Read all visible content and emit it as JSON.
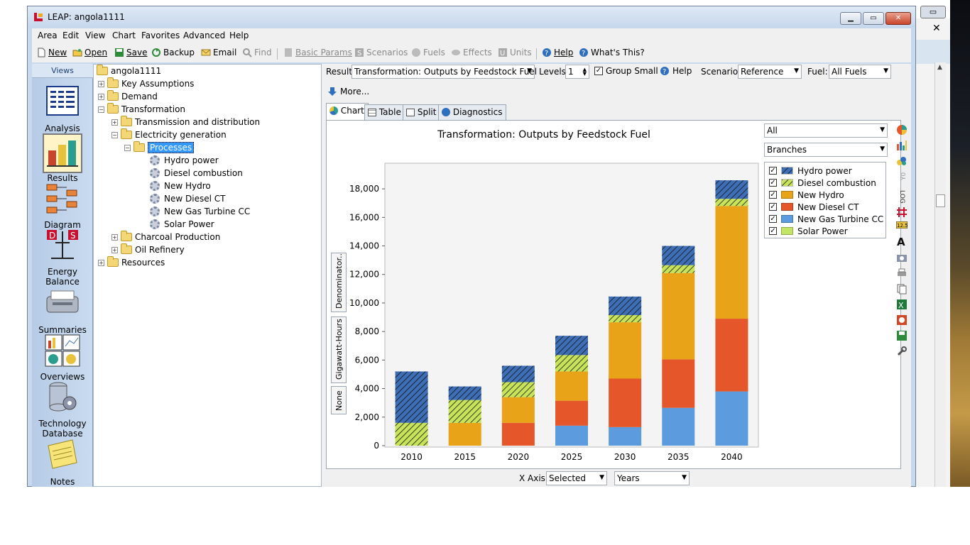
{
  "window": {
    "title": "LEAP: angola1111"
  },
  "menu": [
    "Area",
    "Edit",
    "View",
    "Chart",
    "Favorites",
    "Advanced",
    "Help"
  ],
  "toolbar": {
    "new": "New",
    "open": "Open",
    "save": "Save",
    "backup": "Backup",
    "email": "Email",
    "find": "Find",
    "basic_params": "Basic Params",
    "scenarios": "Scenarios",
    "fuels": "Fuels",
    "effects": "Effects",
    "units": "Units",
    "help": "Help",
    "whats_this": "What's This?"
  },
  "views": {
    "header": "Views",
    "items": [
      {
        "label": "Analysis",
        "icon": "analysis-icon"
      },
      {
        "label": "Results",
        "icon": "results-icon"
      },
      {
        "label": "Diagram",
        "icon": "diagram-icon"
      },
      {
        "label": "Energy Balance",
        "icon": "energy-balance-icon"
      },
      {
        "label": "Summaries",
        "icon": "summaries-icon"
      },
      {
        "label": "Overviews",
        "icon": "overviews-icon"
      },
      {
        "label": "Technology Database",
        "icon": "technology-database-icon"
      },
      {
        "label": "Notes",
        "icon": "notes-icon"
      }
    ]
  },
  "tree": {
    "root": "angola1111",
    "nodes": {
      "key_assumptions": "Key Assumptions",
      "demand": "Demand",
      "transformation": "Transformation",
      "transmission": "Transmission and distribution",
      "electricity": "Electricity generation",
      "processes": "Processes",
      "hydro": "Hydro power",
      "diesel": "Diesel combustion",
      "new_hydro": "New Hydro",
      "new_diesel": "New Diesel CT",
      "new_gas": "New Gas Turbine CC",
      "solar": "Solar Power",
      "charcoal": "Charcoal Production",
      "oil": "Oil Refinery",
      "resources": "Resources"
    }
  },
  "controls": {
    "result_label": "Result:",
    "result_value": "Transformation: Outputs by Feedstock Fuel",
    "levels_label": "Levels:",
    "levels_value": "1",
    "group_small": "Group Small",
    "help": "Help",
    "scenario_label": "Scenario:",
    "scenario_value": "Reference",
    "fuel_label": "Fuel:",
    "fuel_value": "All Fuels",
    "more": "More...",
    "tabs": [
      "Chart",
      "Table",
      "Split",
      "Diagnostics"
    ],
    "filter1": "All",
    "filter2": "Branches",
    "side_tabs": [
      "Denominator..",
      "Gigawatt-Hours",
      "None"
    ],
    "xaxis_label": "X Axis:",
    "xaxis_value": "Selected",
    "xaxis_unit": "Years"
  },
  "colors": {
    "hydro": "#3e6fb6",
    "diesel": "#c7e35a",
    "new_hydro": "#e8a318",
    "new_diesel": "#e5572a",
    "new_gas": "#5b9bde",
    "solar": "#c3e565"
  },
  "chart_data": {
    "type": "bar",
    "stacked": true,
    "title": "Transformation: Outputs by Feedstock Fuel",
    "ylabel": "Gigawatt-Hours",
    "categories": [
      "2010",
      "2015",
      "2020",
      "2025",
      "2030",
      "2035",
      "2040"
    ],
    "ylim": [
      0,
      19000
    ],
    "yticks": [
      "0",
      "2,000",
      "4,000",
      "6,000",
      "8,000",
      "10,000",
      "12,000",
      "14,000",
      "16,000",
      "18,000"
    ],
    "legend_position": "top-right",
    "series": [
      {
        "name": "Solar Power",
        "values": [
          0,
          0,
          0,
          0,
          0,
          0,
          0
        ],
        "color": "#c3e565",
        "hatch": false
      },
      {
        "name": "New Gas Turbine CC",
        "values": [
          0,
          0,
          0,
          1400,
          1300,
          2650,
          3800
        ],
        "color": "#5b9bde",
        "hatch": false
      },
      {
        "name": "New Diesel CT",
        "values": [
          0,
          0,
          1600,
          1750,
          3400,
          3400,
          5100
        ],
        "color": "#e5572a",
        "hatch": false
      },
      {
        "name": "New Hydro",
        "values": [
          0,
          1600,
          1800,
          2050,
          3950,
          6050,
          7900
        ],
        "color": "#e8a318",
        "hatch": false
      },
      {
        "name": "Diesel combustion",
        "values": [
          1600,
          1600,
          1050,
          1150,
          500,
          550,
          500
        ],
        "color": "#c7e35a",
        "hatch": true
      },
      {
        "name": "Hydro power",
        "values": [
          3600,
          950,
          1150,
          1350,
          1300,
          1350,
          1300
        ],
        "color": "#3e6fb6",
        "hatch": true
      }
    ],
    "legend": [
      "Hydro power",
      "Diesel combustion",
      "New Hydro",
      "New Diesel CT",
      "New Gas Turbine CC",
      "Solar Power"
    ]
  }
}
